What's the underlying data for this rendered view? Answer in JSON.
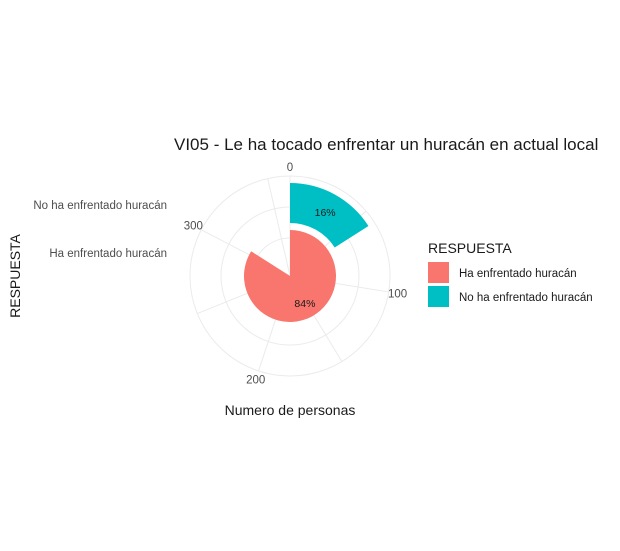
{
  "chart_data": {
    "type": "bar",
    "coord": "polar",
    "title": "VI05 - Le ha tocado enfrentar un huracán en actual local",
    "xlabel": "RESPUESTA",
    "ylabel": "Numero de personas",
    "categories": [
      "Ha enfrentado huracán",
      "No ha enfrentado huracán"
    ],
    "values": [
      305,
      58
    ],
    "labels": [
      "84%",
      "16%"
    ],
    "colors": [
      "#F8766D",
      "#00BFC4"
    ],
    "theta_ticks": [
      0,
      100,
      200,
      300
    ],
    "theta_max": 363,
    "legend": {
      "title": "RESPUESTA",
      "position": "right",
      "entries": [
        "Ha enfrentado huracán",
        "No ha enfrentado huracán"
      ]
    },
    "grid": true
  }
}
